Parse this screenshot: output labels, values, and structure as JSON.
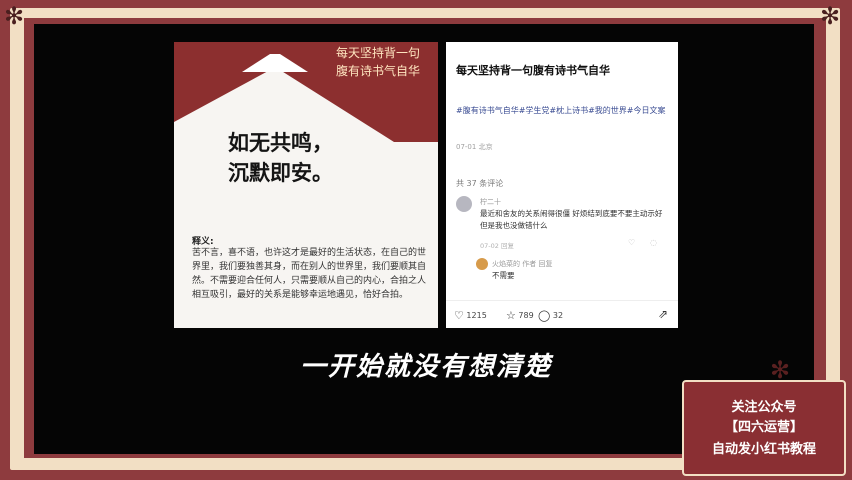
{
  "left_card": {
    "lamp_text_1": "每天坚持背一句",
    "lamp_text_2": "腹有诗书气自华",
    "quote_line_1": "如无共鸣，",
    "quote_line_2": "沉默即安。",
    "explain_title": "释义:",
    "explain_body": "苦不言，喜不语，也许这才是最好的生活状态，在自己的世界里，我们要独善其身，而在别人的世界里，我们要顺其自然。不需要迎合任何人，只需要顺从自己的内心，合拍之人相互吸引，最好的关系是能够幸运地遇见，恰好合拍。"
  },
  "right_card": {
    "title": "每天坚持背一句腹有诗书气自华",
    "hashtags": "#腹有诗书气自华#学生党#枕上诗书#我的世界#今日文案",
    "date": "07-01 北京",
    "comment_count": "共 37 条评论",
    "comment1_user": "柠二十",
    "comment1_text": "最近和舍友的关系闹得很僵 好烦结到底要不要主动示好 但是我也没做错什么",
    "comment1_meta": "07-02 回复",
    "reply_user": "火焰菜的 作者 回复",
    "reply_text": "不需要",
    "likes": "1215",
    "collects": "789",
    "comments": "32"
  },
  "subtitle": "一开始就没有想清楚",
  "promo": {
    "line1": "关注公众号",
    "line2": "【四六运营】",
    "line3": "自动发小红书教程"
  },
  "colors": {
    "frame": "#8e3b3e",
    "cream": "#f2dfc4",
    "accent_red": "#8c2f2f"
  }
}
